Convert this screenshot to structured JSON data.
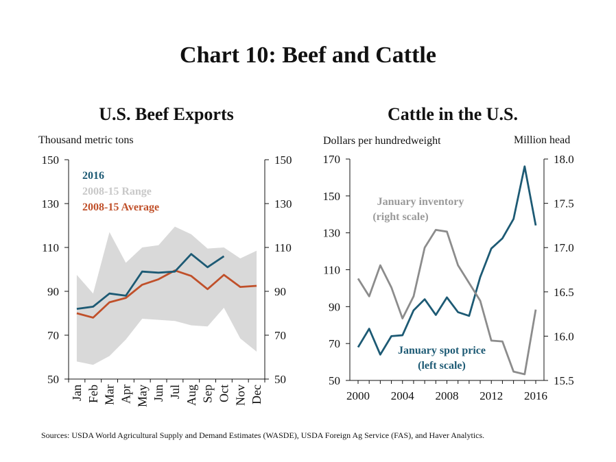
{
  "title": "Chart 10: Beef and Cattle",
  "sources": "Sources: USDA World Agricultural Supply and Demand Estimates (WASDE), USDA Foreign Ag Service (FAS), and Haver Analytics.",
  "colors": {
    "blue": "#1d5a74",
    "orange": "#c0502a",
    "range": "#d9d9d9",
    "gray_line": "#8c8c8c",
    "gray_text": "#9a9a9a"
  },
  "chart_data": [
    {
      "type": "line",
      "title": "U.S. Beef Exports",
      "ylabel": "Thousand metric tons",
      "ylim": [
        50,
        150
      ],
      "yticks": [
        50,
        70,
        90,
        110,
        130,
        150
      ],
      "categories": [
        "Jan",
        "Feb",
        "Mar",
        "Apr",
        "May",
        "Jun",
        "Jul",
        "Aug",
        "Sep",
        "Oct",
        "Nov",
        "Dec"
      ],
      "legend": [
        {
          "label": "2016",
          "color": "#1d5a74"
        },
        {
          "label": "2008-15 Range",
          "color": "#c8c8c8"
        },
        {
          "label": "2008-15 Average",
          "color": "#c0502a"
        }
      ],
      "legend_position": "top-left",
      "grid": false,
      "series": [
        {
          "name": "2016",
          "color": "#1d5a74",
          "values": [
            82,
            83,
            89,
            88,
            99,
            98.5,
            99,
            107,
            101,
            106,
            null,
            null
          ]
        },
        {
          "name": "2008-15 Average",
          "color": "#c0502a",
          "values": [
            80,
            78,
            85,
            87,
            93,
            95.5,
            99.5,
            97,
            91,
            97.5,
            92,
            92.5
          ]
        }
      ],
      "range": {
        "name": "2008-15 Range",
        "color": "#d9d9d9",
        "low": [
          58,
          56.5,
          60.5,
          68,
          77.5,
          77,
          76.5,
          74.5,
          74,
          82.5,
          68.5,
          62.5
        ],
        "high": [
          97.5,
          89,
          117,
          103,
          110,
          111,
          119.5,
          116,
          109.5,
          110,
          105,
          108.5
        ]
      }
    },
    {
      "type": "line",
      "title": "Cattle in the U.S.",
      "ylabel": "Dollars per hundredweight",
      "y2label": "Million head",
      "ylim": [
        50,
        170
      ],
      "yticks": [
        50,
        70,
        90,
        110,
        130,
        150,
        170
      ],
      "y2lim": [
        15.5,
        18.0
      ],
      "y2ticks": [
        "15.5",
        "16.0",
        "16.5",
        "17.0",
        "17.5",
        "18.0"
      ],
      "xlim": [
        2000,
        2016
      ],
      "xticks": [
        2000,
        2004,
        2008,
        2012,
        2016
      ],
      "grid": false,
      "annotations": [
        {
          "text": "January inventory",
          "series": "January inventory"
        },
        {
          "text": "(right scale)",
          "series": "January inventory"
        },
        {
          "text": "January spot price",
          "series": "January spot price"
        },
        {
          "text": "(left scale)",
          "series": "January spot price"
        }
      ],
      "series": [
        {
          "name": "January spot price",
          "axis": "left",
          "color": "#1d5a74",
          "x": [
            2000,
            2001,
            2002,
            2003,
            2004,
            2005,
            2006,
            2007,
            2008,
            2009,
            2010,
            2011,
            2012,
            2013,
            2014,
            2015,
            2016
          ],
          "y": [
            68,
            78,
            64,
            74,
            74.5,
            88,
            94,
            85.5,
            95,
            87,
            85,
            106,
            121.5,
            127,
            137.5,
            166,
            134
          ]
        },
        {
          "name": "January inventory",
          "axis": "right",
          "color": "#8c8c8c",
          "x": [
            2000,
            2001,
            2002,
            2003,
            2004,
            2005,
            2006,
            2007,
            2008,
            2009,
            2010,
            2011,
            2012,
            2013,
            2014,
            2015,
            2016
          ],
          "y": [
            16.65,
            16.45,
            16.8,
            16.55,
            16.2,
            16.45,
            17.0,
            17.2,
            17.18,
            16.8,
            16.6,
            16.4,
            15.95,
            15.94,
            15.6,
            15.57,
            16.3
          ]
        }
      ]
    }
  ]
}
